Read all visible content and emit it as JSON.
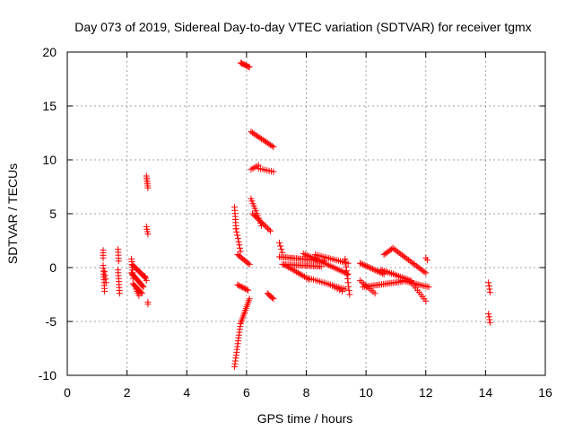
{
  "chart_data": {
    "type": "scatter",
    "title": "Day 073 of 2019, Sidereal Day-to-day VTEC variation (SDTVAR) for receiver tgmx",
    "xlabel": "GPS time / hours",
    "ylabel": "SDTVAR / TECUs",
    "xlim": [
      0,
      16
    ],
    "ylim": [
      -10,
      20
    ],
    "xticks": [
      0,
      2,
      4,
      6,
      8,
      10,
      12,
      14,
      16
    ],
    "xtick_labels": [
      "0",
      "2",
      "4",
      "6",
      "8",
      "10",
      "12",
      "14",
      "16"
    ],
    "yticks": [
      -10,
      -5,
      0,
      5,
      10,
      15,
      20
    ],
    "ytick_labels": [
      "-10",
      "-5",
      "0",
      "5",
      "10",
      "15",
      "20"
    ],
    "grid": true,
    "marker": "plus",
    "color": "#ff0000",
    "segments": [
      {
        "x0": 1.2,
        "y0": 1.6,
        "x1": 1.2,
        "y1": 0.9,
        "n": 4
      },
      {
        "x0": 1.2,
        "y0": 0.2,
        "x1": 1.25,
        "y1": -2.2,
        "n": 10
      },
      {
        "x0": 1.25,
        "y0": -0.4,
        "x1": 1.3,
        "y1": -1.4,
        "n": 4
      },
      {
        "x0": 1.7,
        "y0": 1.7,
        "x1": 1.72,
        "y1": 0.6,
        "n": 5
      },
      {
        "x0": 1.7,
        "y0": -0.2,
        "x1": 1.75,
        "y1": -2.4,
        "n": 9
      },
      {
        "x0": 2.15,
        "y0": 0.8,
        "x1": 2.2,
        "y1": -1.0,
        "n": 8
      },
      {
        "x0": 2.15,
        "y0": -0.5,
        "x1": 2.55,
        "y1": -1.8,
        "n": 14
      },
      {
        "x0": 2.2,
        "y0": -1.5,
        "x1": 2.5,
        "y1": -2.4,
        "n": 10
      },
      {
        "x0": 2.2,
        "y0": 0.2,
        "x1": 2.6,
        "y1": -0.9,
        "n": 12
      },
      {
        "x0": 2.3,
        "y0": -2.0,
        "x1": 2.4,
        "y1": -2.6,
        "n": 4
      },
      {
        "x0": 2.6,
        "y0": -0.8,
        "x1": 2.65,
        "y1": -1.2,
        "n": 3
      },
      {
        "x0": 2.65,
        "y0": 8.5,
        "x1": 2.7,
        "y1": 7.4,
        "n": 7
      },
      {
        "x0": 2.65,
        "y0": 3.8,
        "x1": 2.7,
        "y1": 3.1,
        "n": 4
      },
      {
        "x0": 2.7,
        "y0": -3.2,
        "x1": 2.7,
        "y1": -3.4,
        "n": 2
      },
      {
        "x0": 5.6,
        "y0": 5.6,
        "x1": 5.65,
        "y1": 3.6,
        "n": 8
      },
      {
        "x0": 5.65,
        "y0": 3.6,
        "x1": 5.8,
        "y1": 1.5,
        "n": 8
      },
      {
        "x0": 5.7,
        "y0": 1.2,
        "x1": 6.1,
        "y1": 0.3,
        "n": 10
      },
      {
        "x0": 5.7,
        "y0": -1.6,
        "x1": 6.05,
        "y1": -2.1,
        "n": 9
      },
      {
        "x0": 5.6,
        "y0": -9.2,
        "x1": 5.8,
        "y1": -5.2,
        "n": 16
      },
      {
        "x0": 5.8,
        "y0": -5.2,
        "x1": 6.1,
        "y1": -2.9,
        "n": 14
      },
      {
        "x0": 5.8,
        "y0": 19.0,
        "x1": 6.1,
        "y1": 18.6,
        "n": 9
      },
      {
        "x0": 6.15,
        "y0": 12.6,
        "x1": 6.9,
        "y1": 11.2,
        "n": 16
      },
      {
        "x0": 6.15,
        "y0": 9.1,
        "x1": 6.4,
        "y1": 9.5,
        "n": 5
      },
      {
        "x0": 6.4,
        "y0": 9.2,
        "x1": 6.9,
        "y1": 8.9,
        "n": 8
      },
      {
        "x0": 6.15,
        "y0": 6.4,
        "x1": 6.5,
        "y1": 3.9,
        "n": 12
      },
      {
        "x0": 6.2,
        "y0": 5.0,
        "x1": 6.8,
        "y1": 3.4,
        "n": 14
      },
      {
        "x0": 6.7,
        "y0": -2.4,
        "x1": 6.9,
        "y1": -2.9,
        "n": 6
      },
      {
        "x0": 7.1,
        "y0": 2.3,
        "x1": 7.2,
        "y1": 1.4,
        "n": 4
      },
      {
        "x0": 7.1,
        "y0": 1.0,
        "x1": 8.6,
        "y1": 0.6,
        "n": 30
      },
      {
        "x0": 7.2,
        "y0": 0.3,
        "x1": 8.5,
        "y1": 0.1,
        "n": 26
      },
      {
        "x0": 7.3,
        "y0": 0.2,
        "x1": 8.1,
        "y1": -1.1,
        "n": 16
      },
      {
        "x0": 8.1,
        "y0": -1.0,
        "x1": 9.3,
        "y1": -2.0,
        "n": 18
      },
      {
        "x0": 7.9,
        "y0": 1.3,
        "x1": 9.4,
        "y1": -0.6,
        "n": 26
      },
      {
        "x0": 8.3,
        "y0": 1.2,
        "x1": 9.4,
        "y1": 0.4,
        "n": 18
      },
      {
        "x0": 8.8,
        "y0": -1.6,
        "x1": 9.2,
        "y1": -2.2,
        "n": 6
      },
      {
        "x0": 9.3,
        "y0": 0.8,
        "x1": 9.45,
        "y1": -2.5,
        "n": 10
      },
      {
        "x0": 9.8,
        "y0": 0.4,
        "x1": 10.6,
        "y1": -0.6,
        "n": 18
      },
      {
        "x0": 9.9,
        "y0": -1.8,
        "x1": 11.2,
        "y1": -1.3,
        "n": 24
      },
      {
        "x0": 9.8,
        "y0": -1.2,
        "x1": 10.3,
        "y1": -2.4,
        "n": 9
      },
      {
        "x0": 10.6,
        "y0": 1.2,
        "x1": 10.9,
        "y1": 1.8,
        "n": 7
      },
      {
        "x0": 10.9,
        "y0": 1.8,
        "x1": 12.0,
        "y1": -0.5,
        "n": 22
      },
      {
        "x0": 10.5,
        "y0": -0.2,
        "x1": 11.5,
        "y1": -1.2,
        "n": 18
      },
      {
        "x0": 11.2,
        "y0": -1.2,
        "x1": 12.1,
        "y1": -1.8,
        "n": 16
      },
      {
        "x0": 11.5,
        "y0": -1.3,
        "x1": 12.0,
        "y1": -3.1,
        "n": 10
      },
      {
        "x0": 12.0,
        "y0": 0.9,
        "x1": 12.05,
        "y1": 0.7,
        "n": 2
      },
      {
        "x0": 14.1,
        "y0": -1.4,
        "x1": 14.15,
        "y1": -2.3,
        "n": 4
      },
      {
        "x0": 14.1,
        "y0": -4.3,
        "x1": 14.15,
        "y1": -5.1,
        "n": 4
      }
    ]
  }
}
